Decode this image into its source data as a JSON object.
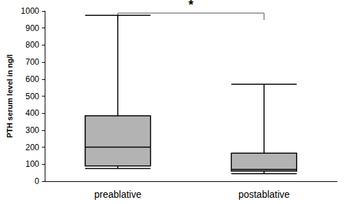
{
  "chart_data": {
    "type": "boxplot",
    "y_label": "PTH serum level in ng/l",
    "categories": [
      "preablative",
      "postablative"
    ],
    "values": [
      [
        75,
        90,
        200,
        385,
        975
      ],
      [
        45,
        60,
        70,
        165,
        570
      ]
    ],
    "color": "#b3b3b3",
    "ylim": [
      0,
      1000
    ],
    "yticks": [
      0,
      100,
      200,
      300,
      400,
      500,
      600,
      700,
      800,
      900,
      1000
    ],
    "grid": false,
    "annotations": [
      {
        "text": "*",
        "from": "preablative",
        "to": "postablative"
      }
    ]
  }
}
